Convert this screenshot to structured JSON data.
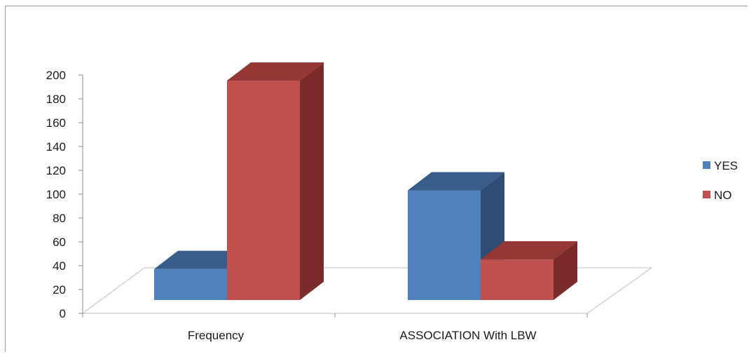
{
  "chart_data": {
    "type": "bar",
    "style": "3d-clustered-column",
    "categories": [
      "Frequency",
      "ASSOCIATION With LBW"
    ],
    "series": [
      {
        "name": "YES",
        "values": [
          26,
          92
        ],
        "color": "#4F81BD",
        "top_color": "#385D8A",
        "side_color": "#2E4D74"
      },
      {
        "name": "NO",
        "values": [
          184,
          34
        ],
        "color": "#C0504D",
        "top_color": "#953735",
        "side_color": "#7B2C2A"
      }
    ],
    "y_ticks": [
      "0",
      "20",
      "40",
      "60",
      "80",
      "100",
      "120",
      "140",
      "160",
      "180",
      "200"
    ],
    "ylim": [
      0,
      200
    ],
    "grid": false,
    "legend_position": "right",
    "title": "",
    "xlabel": "",
    "ylabel": ""
  }
}
